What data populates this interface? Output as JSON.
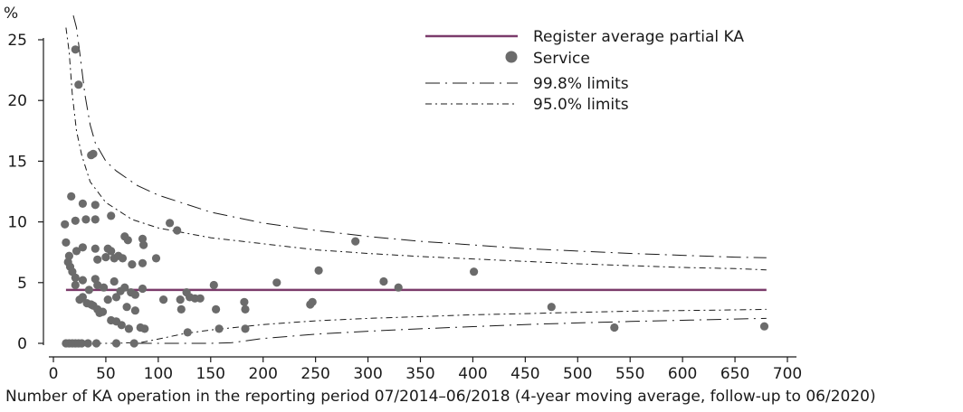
{
  "chart_data": {
    "type": "scatter",
    "ylabel": "%",
    "xlabel": "Number of KA operation in the reporting period 07/2014–06/2018 (4-year moving average, follow-up to 06/2020)",
    "xlim": [
      0,
      700
    ],
    "ylim": [
      0,
      25
    ],
    "x_ticks": [
      0,
      50,
      100,
      150,
      200,
      250,
      300,
      350,
      400,
      450,
      500,
      550,
      600,
      650,
      700
    ],
    "y_ticks": [
      0,
      5,
      10,
      15,
      20,
      25
    ],
    "grid": false,
    "legend_position": "top-right",
    "colors": {
      "average": "#7b3b6b",
      "points": "#6b6b6b",
      "limits": "#1a1a1a"
    },
    "register_average": 4.4,
    "legend": {
      "average": "Register average partial KA",
      "service": "Service",
      "limits_998": "99.8% limits",
      "limits_950": "95.0% limits"
    },
    "limits_998": {
      "upper": [
        [
          19,
          27
        ],
        [
          22,
          26
        ],
        [
          25,
          24
        ],
        [
          30,
          20.5
        ],
        [
          35,
          18
        ],
        [
          40,
          16.5
        ],
        [
          50,
          15
        ],
        [
          60,
          14.2
        ],
        [
          80,
          13
        ],
        [
          100,
          12.2
        ],
        [
          150,
          10.8
        ],
        [
          200,
          9.9
        ],
        [
          250,
          9.3
        ],
        [
          300,
          8.8
        ],
        [
          350,
          8.4
        ],
        [
          400,
          8.1
        ],
        [
          450,
          7.8
        ],
        [
          500,
          7.6
        ],
        [
          550,
          7.4
        ],
        [
          600,
          7.25
        ],
        [
          650,
          7.1
        ],
        [
          680,
          7.05
        ]
      ],
      "lower": [
        [
          80,
          0
        ],
        [
          120,
          0
        ],
        [
          150,
          0
        ],
        [
          170,
          0.05
        ],
        [
          200,
          0.4
        ],
        [
          250,
          0.75
        ],
        [
          300,
          1.0
        ],
        [
          350,
          1.2
        ],
        [
          400,
          1.38
        ],
        [
          450,
          1.55
        ],
        [
          500,
          1.68
        ],
        [
          550,
          1.8
        ],
        [
          600,
          1.9
        ],
        [
          650,
          2.0
        ],
        [
          680,
          2.05
        ]
      ]
    },
    "limits_950": {
      "upper": [
        [
          12,
          26
        ],
        [
          15,
          24
        ],
        [
          18,
          20.5
        ],
        [
          22,
          17.5
        ],
        [
          27,
          15.5
        ],
        [
          35,
          13.3
        ],
        [
          50,
          11.6
        ],
        [
          75,
          10.2
        ],
        [
          100,
          9.5
        ],
        [
          150,
          8.7
        ],
        [
          200,
          8.2
        ],
        [
          250,
          7.7
        ],
        [
          300,
          7.4
        ],
        [
          350,
          7.15
        ],
        [
          400,
          6.95
        ],
        [
          450,
          6.75
        ],
        [
          500,
          6.55
        ],
        [
          550,
          6.4
        ],
        [
          600,
          6.25
        ],
        [
          650,
          6.15
        ],
        [
          680,
          6.05
        ]
      ],
      "lower": [
        [
          40,
          0
        ],
        [
          60,
          0
        ],
        [
          85,
          0.1
        ],
        [
          100,
          0.35
        ],
        [
          125,
          0.8
        ],
        [
          150,
          1.1
        ],
        [
          200,
          1.55
        ],
        [
          250,
          1.85
        ],
        [
          300,
          2.05
        ],
        [
          350,
          2.2
        ],
        [
          400,
          2.35
        ],
        [
          450,
          2.45
        ],
        [
          500,
          2.55
        ],
        [
          550,
          2.65
        ],
        [
          600,
          2.7
        ],
        [
          650,
          2.75
        ],
        [
          680,
          2.8
        ]
      ]
    },
    "services": [
      {
        "x": 21,
        "y": 24.2
      },
      {
        "x": 24,
        "y": 21.3
      },
      {
        "x": 36,
        "y": 15.5
      },
      {
        "x": 38,
        "y": 15.6
      },
      {
        "x": 17,
        "y": 12.1
      },
      {
        "x": 28,
        "y": 11.5
      },
      {
        "x": 40,
        "y": 11.4
      },
      {
        "x": 11,
        "y": 9.8
      },
      {
        "x": 21,
        "y": 10.1
      },
      {
        "x": 31,
        "y": 10.2
      },
      {
        "x": 40,
        "y": 10.2
      },
      {
        "x": 55,
        "y": 10.5
      },
      {
        "x": 111,
        "y": 9.9
      },
      {
        "x": 118,
        "y": 9.3
      },
      {
        "x": 68,
        "y": 8.8
      },
      {
        "x": 71,
        "y": 8.5
      },
      {
        "x": 85,
        "y": 8.6
      },
      {
        "x": 86,
        "y": 8.1
      },
      {
        "x": 12,
        "y": 8.3
      },
      {
        "x": 15,
        "y": 7.2
      },
      {
        "x": 22,
        "y": 7.6
      },
      {
        "x": 28,
        "y": 7.9
      },
      {
        "x": 40,
        "y": 7.8
      },
      {
        "x": 52,
        "y": 7.8
      },
      {
        "x": 55,
        "y": 7.6
      },
      {
        "x": 58,
        "y": 7.0
      },
      {
        "x": 62,
        "y": 7.2
      },
      {
        "x": 66,
        "y": 7.0
      },
      {
        "x": 75,
        "y": 6.5
      },
      {
        "x": 85,
        "y": 6.6
      },
      {
        "x": 98,
        "y": 7.0
      },
      {
        "x": 14,
        "y": 6.7
      },
      {
        "x": 16,
        "y": 6.3
      },
      {
        "x": 42,
        "y": 6.9
      },
      {
        "x": 50,
        "y": 7.1
      },
      {
        "x": 18,
        "y": 5.9
      },
      {
        "x": 21,
        "y": 5.4
      },
      {
        "x": 28,
        "y": 5.2
      },
      {
        "x": 40,
        "y": 5.3
      },
      {
        "x": 58,
        "y": 5.1
      },
      {
        "x": 21,
        "y": 4.8
      },
      {
        "x": 34,
        "y": 4.4
      },
      {
        "x": 42,
        "y": 4.8
      },
      {
        "x": 48,
        "y": 4.6
      },
      {
        "x": 64,
        "y": 4.3
      },
      {
        "x": 68,
        "y": 4.6
      },
      {
        "x": 74,
        "y": 4.2
      },
      {
        "x": 85,
        "y": 4.5
      },
      {
        "x": 78,
        "y": 4.0
      },
      {
        "x": 153,
        "y": 4.8
      },
      {
        "x": 213,
        "y": 5.0
      },
      {
        "x": 253,
        "y": 6.0
      },
      {
        "x": 288,
        "y": 8.4
      },
      {
        "x": 315,
        "y": 5.1
      },
      {
        "x": 329,
        "y": 4.6
      },
      {
        "x": 401,
        "y": 5.9
      },
      {
        "x": 25,
        "y": 3.6
      },
      {
        "x": 28,
        "y": 3.8
      },
      {
        "x": 32,
        "y": 3.3
      },
      {
        "x": 36,
        "y": 3.2
      },
      {
        "x": 38,
        "y": 3.1
      },
      {
        "x": 42,
        "y": 2.8
      },
      {
        "x": 44,
        "y": 2.5
      },
      {
        "x": 47,
        "y": 2.6
      },
      {
        "x": 52,
        "y": 3.6
      },
      {
        "x": 60,
        "y": 3.8
      },
      {
        "x": 70,
        "y": 3.0
      },
      {
        "x": 78,
        "y": 2.7
      },
      {
        "x": 105,
        "y": 3.6
      },
      {
        "x": 121,
        "y": 3.6
      },
      {
        "x": 127,
        "y": 4.2
      },
      {
        "x": 130,
        "y": 3.8
      },
      {
        "x": 135,
        "y": 3.7
      },
      {
        "x": 140,
        "y": 3.7
      },
      {
        "x": 122,
        "y": 2.8
      },
      {
        "x": 155,
        "y": 2.8
      },
      {
        "x": 182,
        "y": 3.4
      },
      {
        "x": 183,
        "y": 2.8
      },
      {
        "x": 245,
        "y": 3.2
      },
      {
        "x": 247,
        "y": 3.4
      },
      {
        "x": 55,
        "y": 1.9
      },
      {
        "x": 60,
        "y": 1.8
      },
      {
        "x": 65,
        "y": 1.5
      },
      {
        "x": 72,
        "y": 1.2
      },
      {
        "x": 83,
        "y": 1.3
      },
      {
        "x": 87,
        "y": 1.2
      },
      {
        "x": 158,
        "y": 1.2
      },
      {
        "x": 183,
        "y": 1.2
      },
      {
        "x": 128,
        "y": 0.9
      },
      {
        "x": 475,
        "y": 3.0
      },
      {
        "x": 535,
        "y": 1.3
      },
      {
        "x": 678,
        "y": 1.4
      },
      {
        "x": 12,
        "y": 0
      },
      {
        "x": 15,
        "y": 0
      },
      {
        "x": 18,
        "y": 0
      },
      {
        "x": 21,
        "y": 0
      },
      {
        "x": 24,
        "y": 0
      },
      {
        "x": 27,
        "y": 0
      },
      {
        "x": 33,
        "y": 0
      },
      {
        "x": 41,
        "y": 0
      },
      {
        "x": 60,
        "y": 0
      },
      {
        "x": 77,
        "y": 0
      }
    ]
  }
}
